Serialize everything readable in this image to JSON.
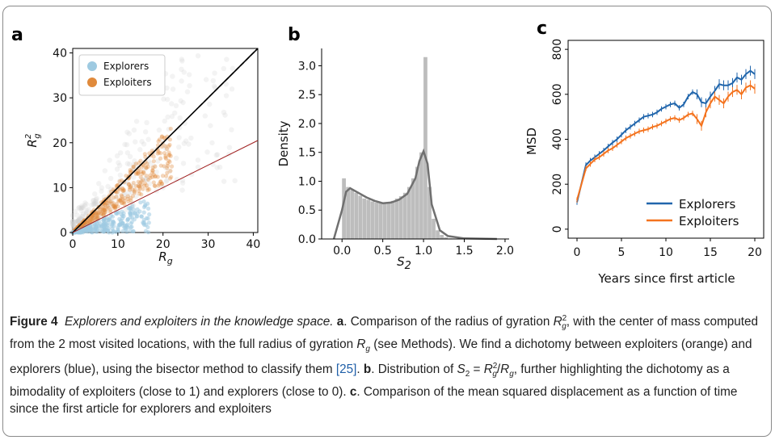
{
  "figure": {
    "label": "Figure 4",
    "title": "Explorers and exploiters in the knowledge space.",
    "panels": {
      "a": {
        "letter": "a",
        "xlabel": "R",
        "xlabel_sub": "g",
        "ylabel": "R",
        "ylabel_sub": "g",
        "ylabel_sup": "2",
        "xticks": [
          "0",
          "10",
          "20",
          "30",
          "40"
        ],
        "yticks": [
          "0",
          "10",
          "20",
          "30",
          "40"
        ],
        "legend": [
          "Explorers",
          "Exploiters"
        ]
      },
      "b": {
        "letter": "b",
        "xlabel": "S",
        "xlabel_sub": "2",
        "ylabel": "Density",
        "xticks": [
          "0.0",
          "0.5",
          "1.0",
          "1.5",
          "2.0"
        ],
        "yticks": [
          "0.0",
          "0.5",
          "1.0",
          "1.5",
          "2.0",
          "2.5",
          "3.0"
        ]
      },
      "c": {
        "letter": "c",
        "xlabel": "Years since first article",
        "ylabel": "MSD",
        "xticks": [
          "0",
          "5",
          "10",
          "15",
          "20"
        ],
        "yticks": [
          "0",
          "200",
          "400",
          "600",
          "800"
        ],
        "legend": [
          "Explorers",
          "Exploiters"
        ]
      }
    },
    "caption": {
      "a_text_1": ". Comparison of the radius of gyration ",
      "a_text_2": ", with the center of mass computed from the 2 most visited locations, with the full radius of gyration ",
      "a_text_3": " (see Methods). We find a dichotomy between exploiters (orange) and explorers (blue), using the bisector method to classify them ",
      "ref": "[25]",
      "b_label": "b",
      "b_text_1": ". Distribution of ",
      "b_text_2": ", further highlighting the dichotomy as a bimodality of exploiters (close to 1) and explorers (close to 0). ",
      "c_label": "c",
      "c_text": ". Comparison of the mean squared displacement as a function of time since the first article for explorers and exploiters"
    }
  },
  "colors": {
    "explorers_a": "#9ecae1",
    "exploiters_a": "#e08a3c",
    "explorers_c": "#2166ac",
    "exploiters_c": "#f4731e",
    "hist": "#bdbdbd",
    "kde": "#707070",
    "bisector": "#a02020"
  },
  "chart_data": [
    {
      "type": "scatter",
      "panel": "a",
      "xlabel": "R_g",
      "ylabel": "R_g^2",
      "xlim": [
        0,
        41
      ],
      "ylim": [
        0,
        41
      ],
      "legend_placement": "top-left",
      "series": [
        {
          "name": "Explorers",
          "description_points": [
            [
              2,
              1
            ],
            [
              5,
              2
            ],
            [
              8,
              2
            ],
            [
              10,
              3
            ],
            [
              12,
              3
            ],
            [
              15,
              2
            ]
          ]
        },
        {
          "name": "Exploiters",
          "description_points": [
            [
              2,
              2
            ],
            [
              5,
              5
            ],
            [
              8,
              8
            ],
            [
              10,
              10
            ],
            [
              13,
              13
            ],
            [
              16,
              16
            ],
            [
              20,
              20
            ]
          ]
        }
      ],
      "lines": [
        {
          "kind": "y=x",
          "x": [
            0,
            41
          ],
          "y": [
            0,
            41
          ]
        },
        {
          "kind": "bisector",
          "x": [
            0,
            41
          ],
          "y": [
            0,
            20.5
          ]
        }
      ]
    },
    {
      "type": "bar",
      "panel": "b",
      "xlabel": "S_2",
      "ylabel": "Density",
      "xlim": [
        -0.25,
        2.05
      ],
      "ylim": [
        0,
        3.3
      ],
      "bins": [
        0.0,
        0.05,
        0.1,
        0.15,
        0.2,
        0.25,
        0.3,
        0.35,
        0.4,
        0.45,
        0.5,
        0.55,
        0.6,
        0.65,
        0.7,
        0.75,
        0.8,
        0.85,
        0.9,
        0.95,
        1.0,
        1.05,
        1.1,
        1.15,
        1.2,
        1.25,
        1.3
      ],
      "values": [
        1.05,
        0.9,
        0.85,
        0.8,
        0.75,
        0.7,
        0.68,
        0.65,
        0.63,
        0.62,
        0.62,
        0.64,
        0.66,
        0.7,
        0.74,
        0.8,
        0.9,
        1.05,
        1.25,
        1.5,
        3.15,
        0.9,
        0.35,
        0.15,
        0.07,
        0.03,
        0.01
      ],
      "kde": {
        "x": [
          -0.1,
          0.0,
          0.05,
          0.1,
          0.2,
          0.3,
          0.4,
          0.5,
          0.6,
          0.7,
          0.8,
          0.9,
          0.95,
          1.0,
          1.05,
          1.1,
          1.2,
          1.3,
          1.5,
          1.9
        ],
        "y": [
          0.0,
          0.5,
          0.82,
          0.88,
          0.8,
          0.72,
          0.66,
          0.62,
          0.63,
          0.68,
          0.78,
          1.05,
          1.35,
          1.52,
          1.3,
          0.6,
          0.15,
          0.05,
          0.01,
          0.0
        ]
      }
    },
    {
      "type": "line",
      "panel": "c",
      "xlabel": "Years since first article",
      "ylabel": "MSD",
      "xlim": [
        -1,
        21
      ],
      "ylim": [
        -40,
        840
      ],
      "legend_placement": "bottom-right",
      "x": [
        0,
        1,
        1.5,
        2,
        2.5,
        3,
        3.5,
        4,
        4.5,
        5,
        5.5,
        6,
        6.5,
        7,
        7.5,
        8,
        8.5,
        9,
        9.5,
        10,
        10.5,
        11,
        11.5,
        12,
        12.5,
        13,
        13.5,
        14,
        14.5,
        15,
        15.5,
        16,
        16.5,
        17,
        17.5,
        18,
        18.5,
        19,
        19.5,
        20
      ],
      "series": [
        {
          "name": "Explorers",
          "values": [
            120,
            285,
            305,
            320,
            335,
            350,
            368,
            385,
            400,
            420,
            440,
            455,
            470,
            485,
            500,
            505,
            510,
            520,
            535,
            545,
            555,
            560,
            540,
            555,
            590,
            610,
            600,
            565,
            560,
            590,
            615,
            645,
            640,
            640,
            650,
            675,
            665,
            690,
            705,
            690
          ]
        },
        {
          "name": "Exploiters",
          "values": [
            130,
            270,
            290,
            310,
            320,
            335,
            350,
            360,
            375,
            390,
            405,
            415,
            425,
            435,
            440,
            445,
            455,
            460,
            470,
            480,
            490,
            495,
            485,
            495,
            510,
            515,
            490,
            460,
            520,
            560,
            590,
            575,
            560,
            590,
            610,
            620,
            600,
            630,
            640,
            625
          ]
        }
      ]
    }
  ]
}
